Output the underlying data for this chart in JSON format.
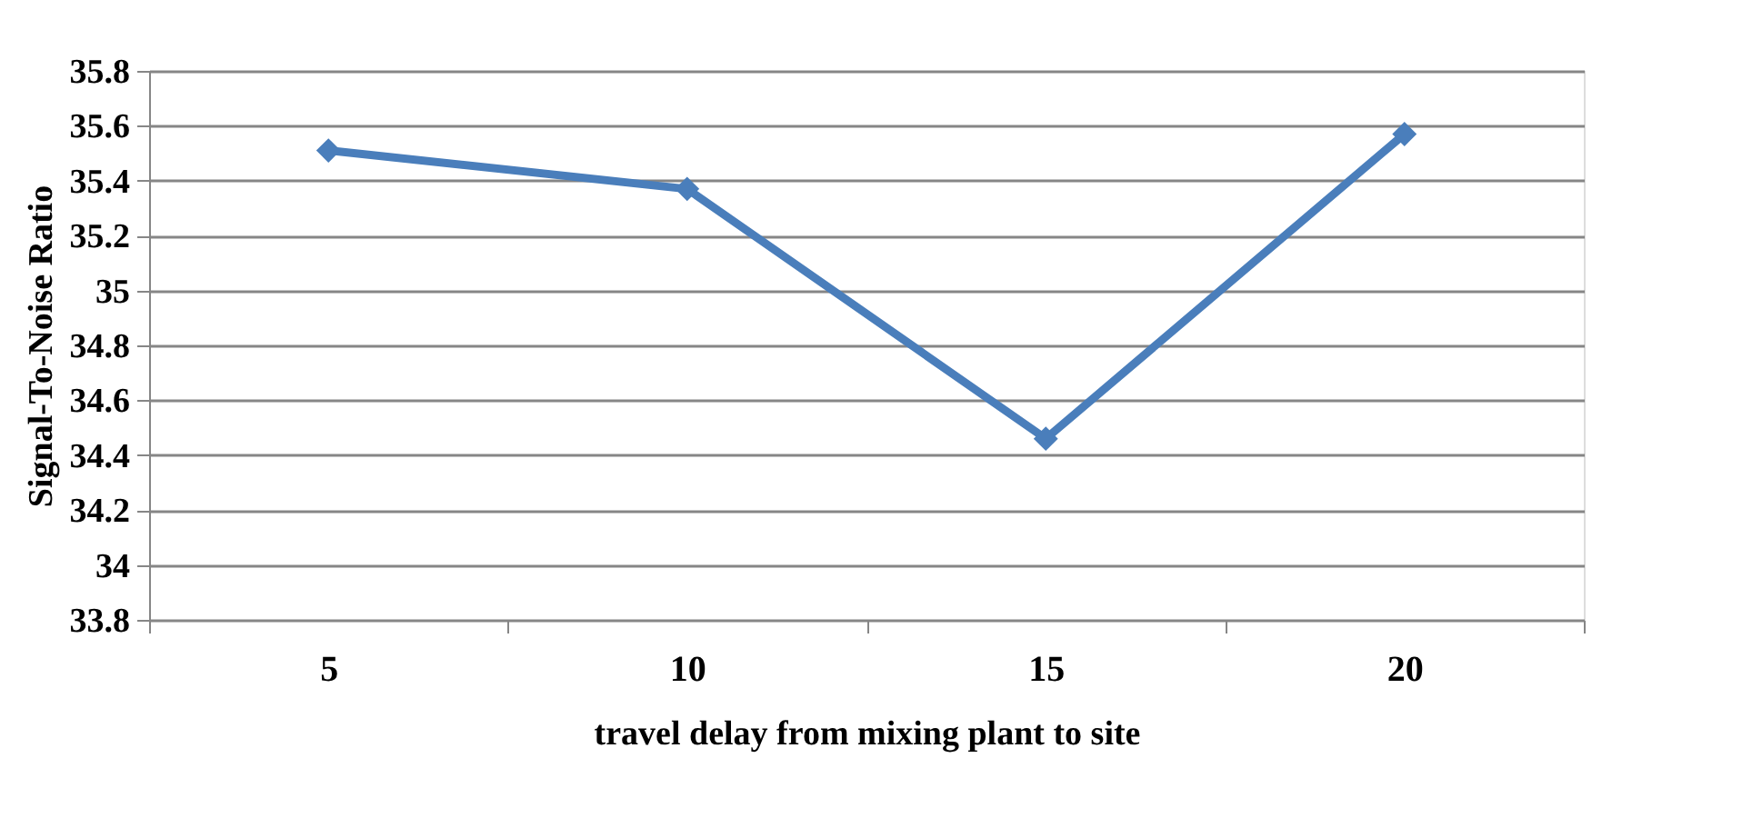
{
  "chart_data": {
    "type": "line",
    "xlabel": "travel delay from mixing plant to site",
    "ylabel": "Signal-To-Noise Ratio",
    "categories": [
      "5",
      "10",
      "15",
      "20"
    ],
    "series": [
      {
        "color": "#4a7ebb",
        "values": [
          35.51,
          35.37,
          34.46,
          35.57
        ]
      }
    ],
    "ylim": [
      33.8,
      35.8
    ],
    "yticks": [
      33.8,
      34,
      34.2,
      34.4,
      34.6,
      34.8,
      35,
      35.2,
      35.4,
      35.6,
      35.8
    ],
    "grid": "y",
    "marker": "diamond",
    "line_style": "solid",
    "legend": false
  }
}
